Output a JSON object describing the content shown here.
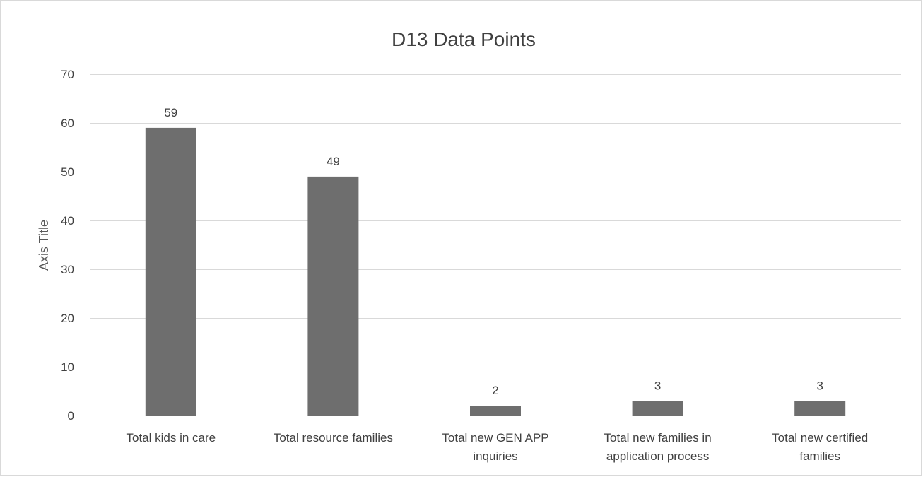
{
  "chart_data": {
    "type": "bar",
    "title": "D13 Data Points",
    "ylabel": "Axis Title",
    "xlabel": "",
    "ylim": [
      0,
      70
    ],
    "yticks": [
      0,
      10,
      20,
      30,
      40,
      50,
      60,
      70
    ],
    "grid": true,
    "legend": "none",
    "bar_color": "#6e6e6e",
    "categories": [
      [
        "Total kids in care"
      ],
      [
        "Total resource families"
      ],
      [
        "Total new GEN APP",
        "inquiries"
      ],
      [
        "Total new families in",
        "application process"
      ],
      [
        "Total new certified",
        "families"
      ]
    ],
    "values": [
      59,
      49,
      2,
      3,
      3
    ]
  }
}
